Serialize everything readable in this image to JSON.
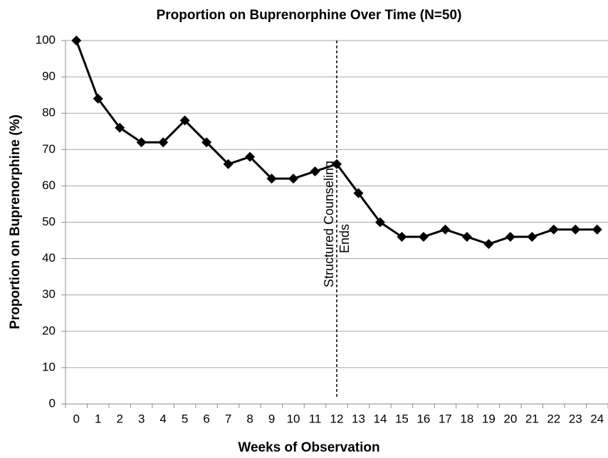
{
  "chart_data": {
    "type": "line",
    "title": "Proportion on Buprenorphine Over Time (N=50)",
    "x_label": "Weeks of Observation",
    "y_label": "Proportion on Buprenorphine (%)",
    "categories": [
      "0",
      "1",
      "2",
      "3",
      "4",
      "5",
      "6",
      "7",
      "8",
      "9",
      "10",
      "11",
      "12",
      "13",
      "14",
      "15",
      "16",
      "17",
      "18",
      "19",
      "20",
      "21",
      "22",
      "23",
      "24"
    ],
    "values": [
      100,
      84,
      76,
      72,
      72,
      78,
      72,
      66,
      68,
      62,
      62,
      64,
      66,
      58,
      50,
      46,
      46,
      48,
      46,
      44,
      46,
      46,
      48,
      48,
      48
    ],
    "color": "#000000",
    "ylim": [
      0,
      100
    ],
    "yticks": [
      0,
      10,
      20,
      30,
      40,
      50,
      60,
      70,
      80,
      90,
      100
    ],
    "grid": true,
    "annotation": {
      "lines": [
        "Structured Counseling",
        "Ends"
      ],
      "at": "12"
    }
  }
}
